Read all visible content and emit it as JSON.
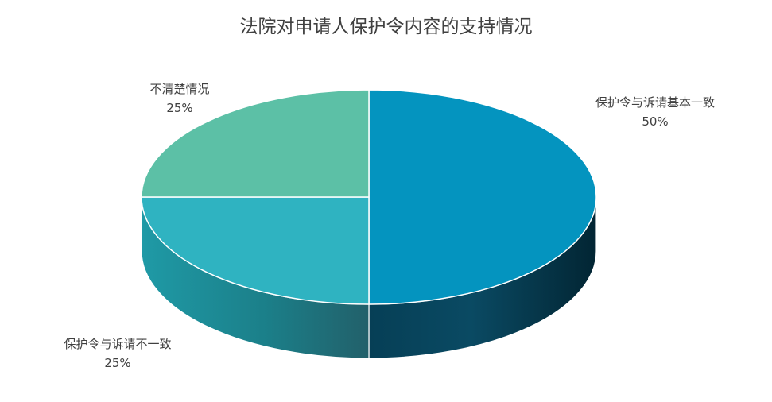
{
  "chart_data": {
    "type": "pie",
    "style": "3d",
    "title": "法院对申请人保护令内容的支持情况",
    "slices": [
      {
        "name": "保护令与诉请基本一致",
        "value": 50,
        "percent_label": "50%",
        "color": "#0494bf"
      },
      {
        "name": "保护令与诉请不一致",
        "value": 25,
        "percent_label": "25%",
        "color": "#2fb3c1"
      },
      {
        "name": "不清楚情况",
        "value": 25,
        "percent_label": "25%",
        "color": "#5cc0a6"
      }
    ]
  }
}
